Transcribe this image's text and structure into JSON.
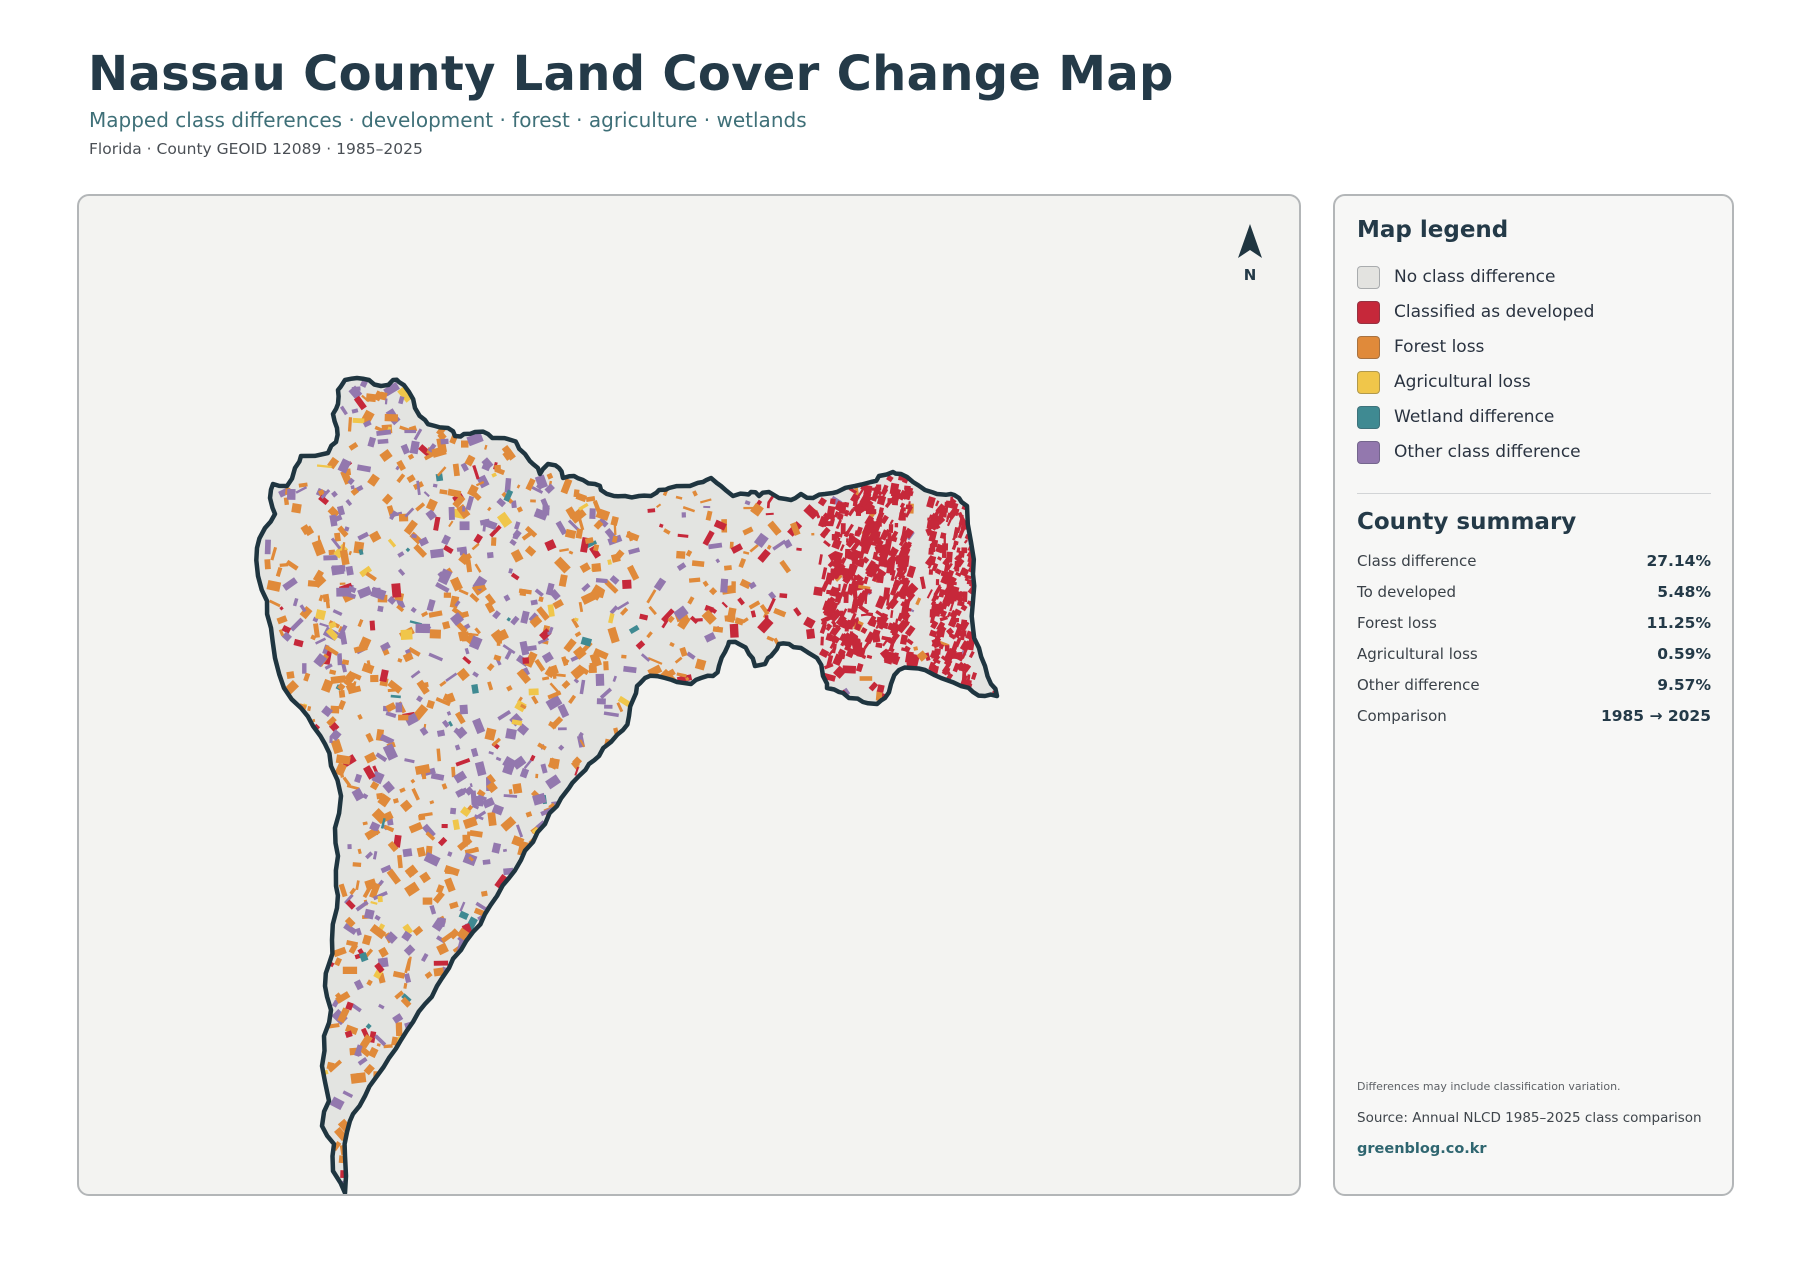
{
  "header": {
    "title": "Nassau County Land Cover Change Map",
    "subtitle": "Mapped class differences · development · forest · agriculture · wetlands",
    "meta": "Florida · County GEOID 12089 · 1985–2025"
  },
  "map": {
    "north_label": "N",
    "boundary_color": "#1f3540",
    "base_color": "#e3e4e1",
    "panel_color": "#f3f3f1"
  },
  "legend": {
    "heading": "Map legend",
    "items": [
      {
        "label": "No class difference",
        "color": "#e3e3e0"
      },
      {
        "label": "Classified as developed",
        "color": "#c6283a"
      },
      {
        "label": "Forest loss",
        "color": "#e08a3a"
      },
      {
        "label": "Agricultural loss",
        "color": "#f0c64a"
      },
      {
        "label": "Wetland difference",
        "color": "#3f8a92"
      },
      {
        "label": "Other class difference",
        "color": "#9378ae"
      }
    ]
  },
  "summary": {
    "heading": "County summary",
    "rows": [
      {
        "label": "Class difference",
        "value": "27.14%"
      },
      {
        "label": "To developed",
        "value": "5.48%"
      },
      {
        "label": "Forest loss",
        "value": "11.25%"
      },
      {
        "label": "Agricultural loss",
        "value": "0.59%"
      },
      {
        "label": "Other difference",
        "value": "9.57%"
      },
      {
        "label": "Comparison",
        "value": "1985 → 2025"
      }
    ]
  },
  "footer": {
    "note": "Differences may include classification variation.",
    "source": "Source: Annual NLCD 1985–2025 class comparison",
    "site": "greenblog.co.kr"
  }
}
